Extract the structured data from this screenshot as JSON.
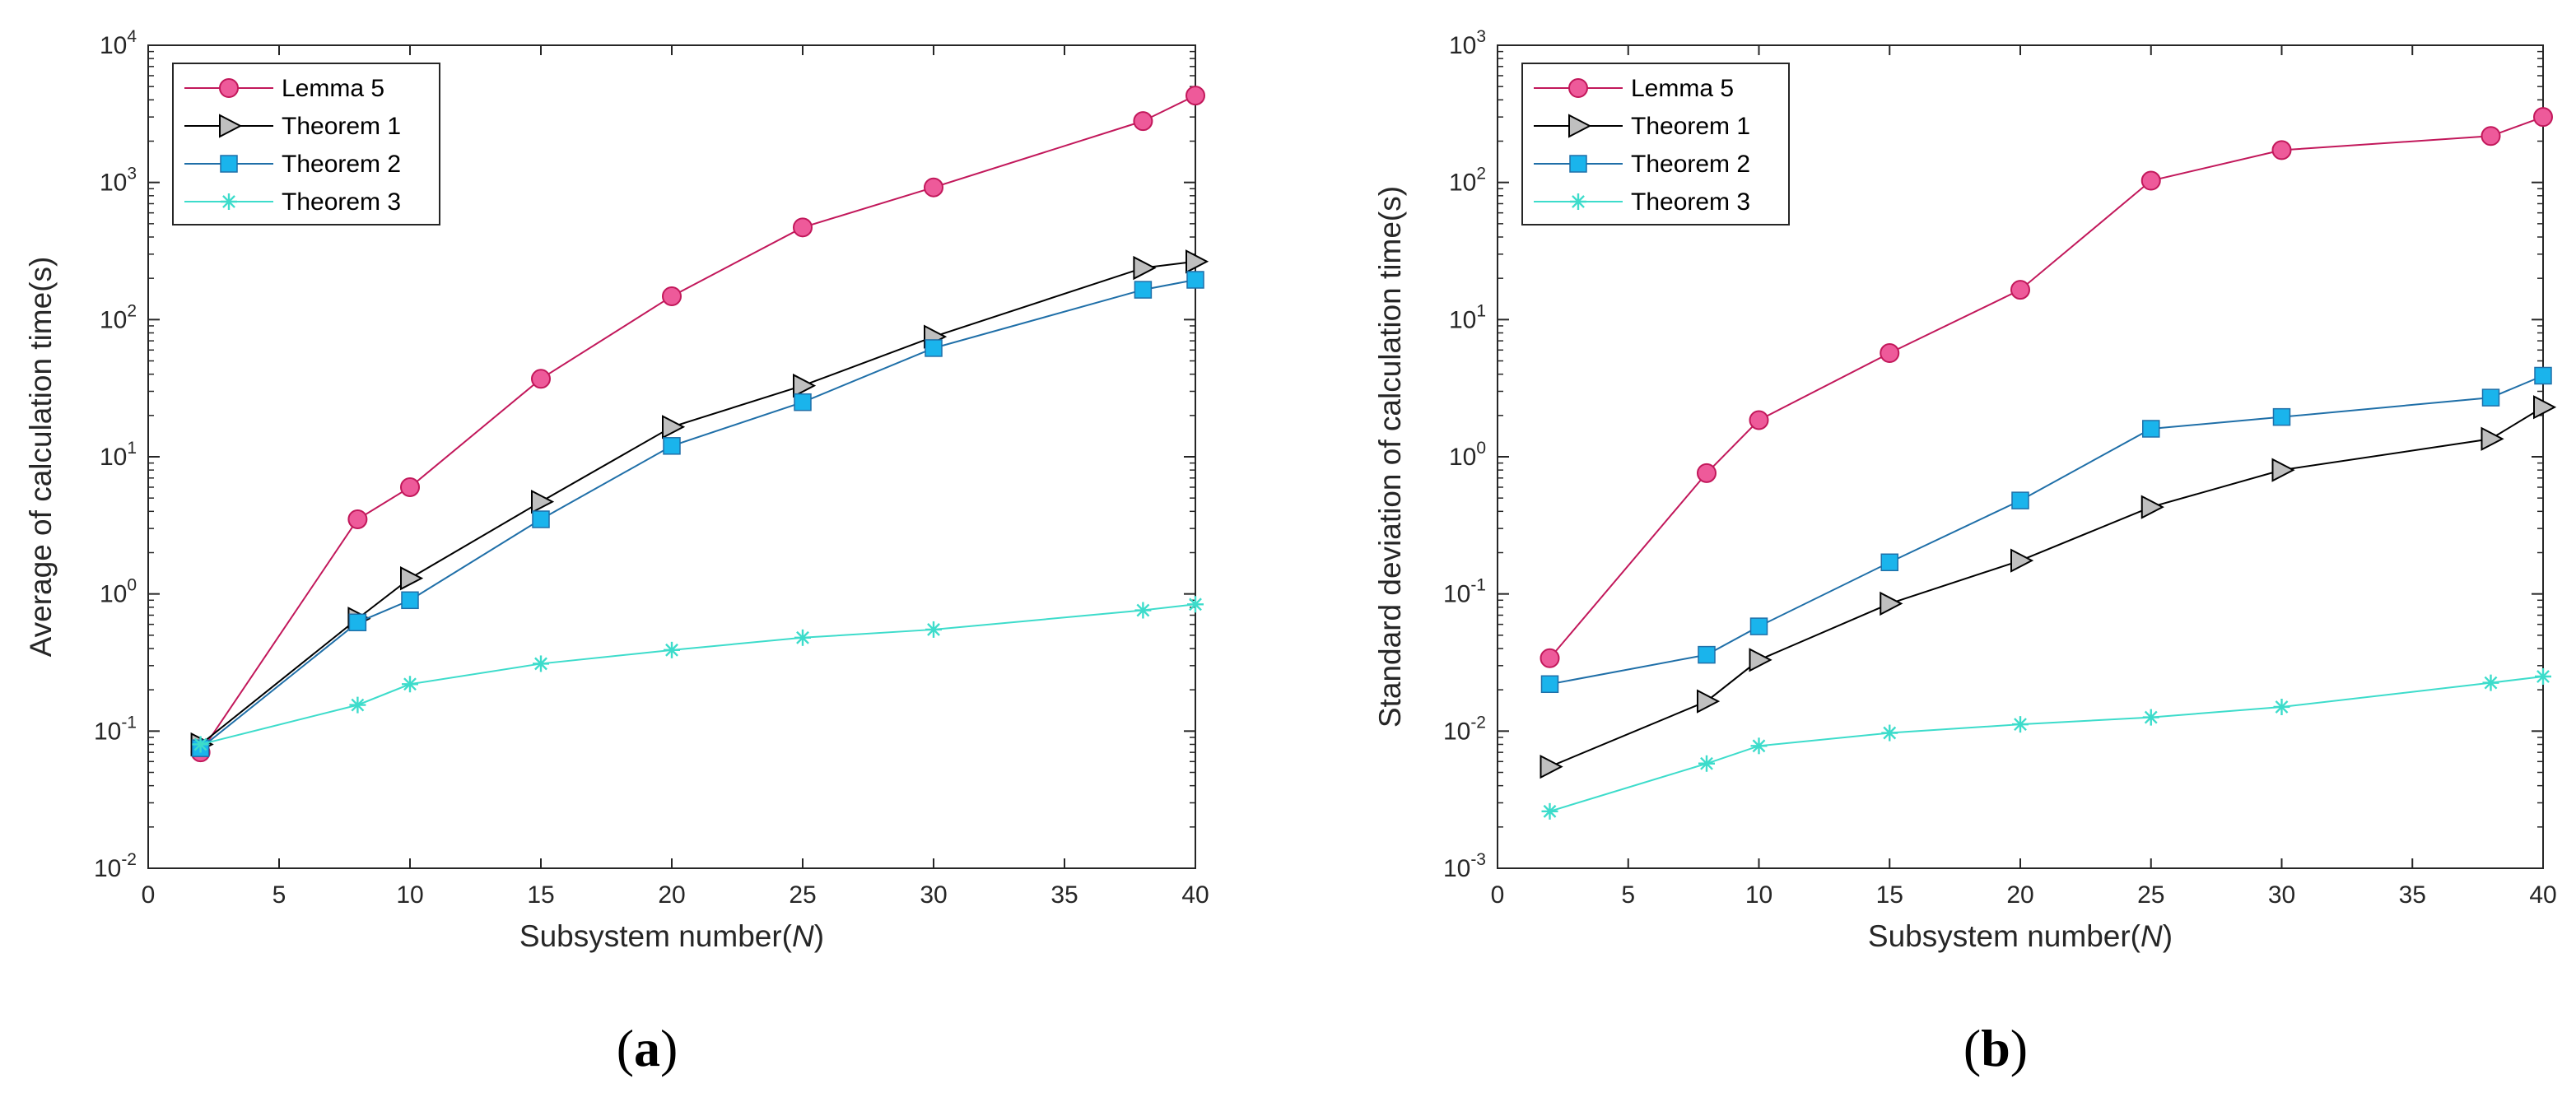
{
  "chart_data": [
    {
      "id": "a",
      "type": "line",
      "yscale": "log",
      "caption_letter": "a",
      "xlabel_main": "Subsystem number(",
      "xlabel_var": "N",
      "xlabel_close": ")",
      "ylabel": "Average of calculation time(s)",
      "xlim": [
        0,
        40
      ],
      "ylim": [
        0.01,
        10000
      ],
      "xticks": [
        0,
        5,
        10,
        15,
        20,
        25,
        30,
        35,
        40
      ],
      "xtick_labels": [
        "0",
        "5",
        "10",
        "15",
        "20",
        "25",
        "30",
        "35",
        "40"
      ],
      "ytick_exponents": [
        -2,
        -1,
        0,
        1,
        2,
        3,
        4
      ],
      "ytick_base": "10",
      "legend_position": "top-left",
      "x": [
        2,
        8,
        10,
        15,
        20,
        25,
        30,
        38,
        40
      ],
      "series": [
        {
          "name": "Lemma 5",
          "marker": "circle",
          "line_color": "#C2185B",
          "face_color": "#EE5A9A",
          "values": [
            0.07,
            3.5,
            6,
            37,
            148,
            470,
            920,
            2800,
            4300
          ]
        },
        {
          "name": "Theorem 1",
          "marker": "triangle-right",
          "line_color": "#000000",
          "face_color": "#BFBFBF",
          "values": [
            0.08,
            0.66,
            1.3,
            4.7,
            16.5,
            33,
            75,
            238,
            265
          ]
        },
        {
          "name": "Theorem 2",
          "marker": "square",
          "line_color": "#1F6FA8",
          "face_color": "#1AB4EC",
          "values": [
            0.075,
            0.62,
            0.9,
            3.5,
            12,
            25,
            62,
            165,
            195
          ]
        },
        {
          "name": "Theorem 3",
          "marker": "star",
          "line_color": "#3DDCCB",
          "face_color": "#3DDCCB",
          "values": [
            0.08,
            0.155,
            0.22,
            0.31,
            0.39,
            0.48,
            0.55,
            0.76,
            0.84
          ]
        }
      ]
    },
    {
      "id": "b",
      "type": "line",
      "yscale": "log",
      "caption_letter": "b",
      "xlabel_main": "Subsystem number(",
      "xlabel_var": "N",
      "xlabel_close": ")",
      "ylabel": "Standard deviation of calculation time(s)",
      "xlim": [
        0,
        40
      ],
      "ylim": [
        0.001,
        1000
      ],
      "xticks": [
        0,
        5,
        10,
        15,
        20,
        25,
        30,
        35,
        40
      ],
      "xtick_labels": [
        "0",
        "5",
        "10",
        "15",
        "20",
        "25",
        "30",
        "35",
        "40"
      ],
      "ytick_exponents": [
        -3,
        -2,
        -1,
        0,
        1,
        2,
        3
      ],
      "ytick_base": "10",
      "legend_position": "top-left",
      "x": [
        2,
        8,
        10,
        15,
        20,
        25,
        30,
        38,
        40
      ],
      "series": [
        {
          "name": "Lemma 5",
          "marker": "circle",
          "line_color": "#C2185B",
          "face_color": "#EE5A9A",
          "values": [
            0.034,
            0.76,
            1.85,
            5.7,
            16.5,
            103,
            172,
            218,
            300
          ]
        },
        {
          "name": "Theorem 1",
          "marker": "triangle-right",
          "line_color": "#000000",
          "face_color": "#BFBFBF",
          "values": [
            0.0055,
            0.0165,
            0.033,
            0.085,
            0.175,
            0.43,
            0.8,
            1.35,
            2.3
          ]
        },
        {
          "name": "Theorem 2",
          "marker": "square",
          "line_color": "#1F6FA8",
          "face_color": "#1AB4EC",
          "values": [
            0.022,
            0.036,
            0.058,
            0.17,
            0.48,
            1.6,
            1.95,
            2.7,
            3.9
          ]
        },
        {
          "name": "Theorem 3",
          "marker": "star",
          "line_color": "#3DDCCB",
          "face_color": "#3DDCCB",
          "values": [
            0.0026,
            0.0058,
            0.0078,
            0.0097,
            0.0112,
            0.0126,
            0.015,
            0.0225,
            0.025
          ]
        }
      ]
    }
  ]
}
